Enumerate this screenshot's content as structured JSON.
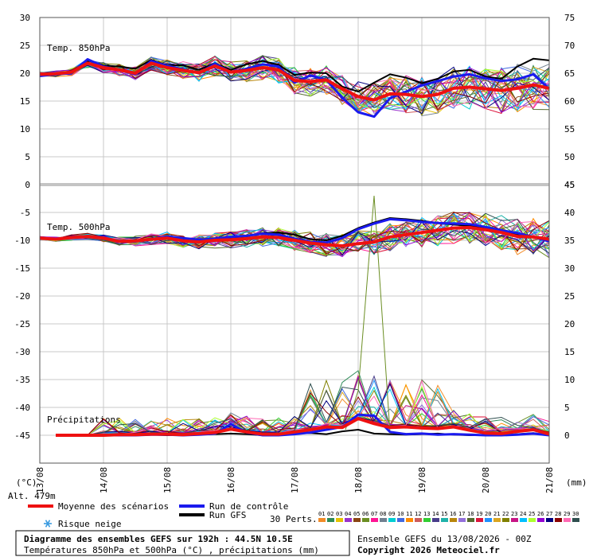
{
  "chart_data": {
    "type": "line",
    "title": "Diagramme des ensembles GEFS sur 192h : 44.5N 10.5E",
    "subtitle": "Températures 850hPa et 500hPa (°C) , précipitations (mm)",
    "run_info": "Ensemble GEFS du 13/08/2026 - 00Z",
    "copyright": "Copyright 2026 Meteociel.fr",
    "altitude_label": "Alt. 479m",
    "left_unit": "(°C)",
    "right_unit": "(mm)",
    "perts_label": "30 Perts.",
    "dates": [
      "13/08",
      "14/08",
      "15/08",
      "16/08",
      "17/08",
      "18/08",
      "19/08",
      "20/08",
      "21/08"
    ],
    "left_ticks": [
      "30",
      "25",
      "20",
      "15",
      "10",
      "5",
      "0",
      "-5",
      "-10",
      "-15",
      "-20",
      "-25",
      "-30",
      "-35",
      "-40",
      "-45"
    ],
    "right_top_ticks": [
      "75",
      "70",
      "65",
      "60",
      "55",
      "50",
      "45"
    ],
    "right_bottom_ticks": [
      "45",
      "40",
      "35",
      "30",
      "25",
      "20",
      "15",
      "10",
      "5",
      "0"
    ],
    "pert_numbers": [
      "01",
      "02",
      "03",
      "04",
      "05",
      "06",
      "07",
      "08",
      "09",
      "10",
      "11",
      "12",
      "13",
      "14",
      "15",
      "16",
      "17",
      "18",
      "19",
      "20",
      "21",
      "22",
      "23",
      "24",
      "25",
      "26",
      "27",
      "28",
      "29",
      "30"
    ],
    "pert_colors": [
      "#f28c28",
      "#2e8b57",
      "#e6c300",
      "#9932cc",
      "#8b4513",
      "#6b8e23",
      "#ff1493",
      "#708090",
      "#00ced1",
      "#4169e1",
      "#ff8c00",
      "#cd5c5c",
      "#32cd32",
      "#483d8b",
      "#20b2aa",
      "#b8860b",
      "#9370db",
      "#556b2f",
      "#dc143c",
      "#1e90ff",
      "#daa520",
      "#808000",
      "#c71585",
      "#00bfff",
      "#adff2f",
      "#9400d3",
      "#000080",
      "#8b0000",
      "#ff69b4",
      "#2f4f4f"
    ],
    "panels": [
      {
        "key": "t850",
        "label": "Temp. 850hPa",
        "ylim": [
          0,
          30
        ]
      },
      {
        "key": "t500",
        "label": "Temp. 500hPa",
        "ylim": [
          -45,
          -5
        ]
      },
      {
        "key": "precip",
        "label": "Précipitations",
        "ylim": [
          0,
          45
        ]
      }
    ],
    "legend": {
      "mean": "Moyenne des scénarios",
      "control": "Run de contrôle",
      "gfs": "Run GFS",
      "snow": "Risque neige"
    },
    "series_colors": {
      "mean": "#ee1111",
      "control": "#1a1aee",
      "gfs": "#000000"
    },
    "x_days": [
      0,
      0.25,
      0.5,
      0.75,
      1,
      1.25,
      1.5,
      1.75,
      2,
      2.25,
      2.5,
      2.75,
      3,
      3.25,
      3.5,
      3.75,
      4,
      4.25,
      4.5,
      4.75,
      5,
      5.25,
      5.5,
      5.75,
      6,
      6.25,
      6.5,
      6.75,
      7,
      7.25,
      7.5,
      7.75,
      8
    ],
    "t850": {
      "mean": [
        19.8,
        19.9,
        20.2,
        21.8,
        21,
        20.6,
        20,
        21.8,
        21,
        20.5,
        20.1,
        21.3,
        20.2,
        20.5,
        21,
        20.6,
        18.7,
        18.5,
        18.8,
        17.2,
        15.8,
        15.2,
        16.3,
        16.2,
        15.8,
        16.2,
        17.3,
        17.5,
        17.2,
        16.9,
        17.3,
        17.9,
        17.3
      ],
      "control": [
        19.5,
        19.8,
        20,
        22.5,
        21.2,
        20.6,
        19.8,
        22.2,
        21.3,
        20.7,
        20,
        21.7,
        20.2,
        20.8,
        21.6,
        21.2,
        18.3,
        19.6,
        18.8,
        15.6,
        13,
        12.2,
        15.5,
        16.7,
        17.8,
        18.6,
        19.4,
        19.8,
        19.1,
        18.6,
        18.9,
        19.8,
        17.2
      ],
      "gfs": [
        19.6,
        20,
        20.3,
        22.3,
        21.4,
        21.2,
        20.8,
        22.4,
        21.4,
        21.4,
        20.6,
        21.8,
        20.6,
        21.6,
        22.2,
        21.5,
        19.7,
        20.1,
        20,
        17.6,
        16.7,
        18.3,
        19.8,
        19.2,
        18.2,
        19,
        20.3,
        20.6,
        19.4,
        19,
        21.2,
        22.6,
        22.3
      ]
    },
    "t500": {
      "mean": [
        -9.6,
        -9.8,
        -9.5,
        -9.3,
        -9.6,
        -10.2,
        -10.1,
        -9.8,
        -9.6,
        -10.1,
        -10.3,
        -10,
        -9.9,
        -9.7,
        -9.4,
        -9.5,
        -10,
        -10.5,
        -10.8,
        -11,
        -10.6,
        -10.3,
        -9.4,
        -9,
        -8.6,
        -8.2,
        -7.8,
        -7.7,
        -8.1,
        -8.6,
        -9.3,
        -9.4,
        -9.8
      ],
      "control": [
        -9.7,
        -9.8,
        -9.4,
        -9.3,
        -9.4,
        -10.3,
        -10.2,
        -9.8,
        -9.3,
        -9.6,
        -9.9,
        -9.7,
        -9.4,
        -9.2,
        -8.8,
        -9,
        -9.7,
        -10.3,
        -10.4,
        -9.6,
        -8,
        -7,
        -6.2,
        -6.4,
        -6.7,
        -6.9,
        -7,
        -7.1,
        -7.6,
        -8.2,
        -8.7,
        -9.4,
        -10.2
      ],
      "gfs": [
        -9.6,
        -9.9,
        -9.6,
        -9.3,
        -9.5,
        -10.2,
        -10.2,
        -9.8,
        -9.5,
        -9.9,
        -10.2,
        -9.8,
        -9.5,
        -9.3,
        -8.7,
        -8.6,
        -9,
        -9.8,
        -10,
        -9.2,
        -7.8,
        -6.8,
        -6,
        -6.2,
        -6.5,
        -6.9,
        -7.2,
        -7.4,
        -7.9,
        -8.5,
        -9,
        -9.4,
        -9.9
      ]
    },
    "precip": {
      "mean": [
        0,
        0,
        0,
        0,
        0,
        0.1,
        0.1,
        0.2,
        0.2,
        0.1,
        0.3,
        0.5,
        1.1,
        0.6,
        0.2,
        0.2,
        0.6,
        1,
        1.5,
        1.4,
        3,
        2.1,
        1.4,
        1.5,
        1.3,
        1.2,
        1.5,
        0.9,
        0.4,
        0.3,
        0.7,
        1,
        0.2
      ],
      "control": [
        0,
        0,
        0,
        0,
        0,
        0,
        0,
        0.1,
        0.1,
        0,
        0.1,
        0.3,
        2,
        0.5,
        0,
        0,
        0.2,
        0.5,
        1,
        1.5,
        3.7,
        3.5,
        0.6,
        0.2,
        0.3,
        0.1,
        0.2,
        0.1,
        0,
        0,
        0.1,
        0.3,
        0
      ],
      "gfs": [
        0,
        0,
        0,
        0,
        0,
        0,
        0,
        0.1,
        0,
        0,
        0.1,
        0.2,
        0.3,
        0.2,
        0,
        0,
        0.3,
        0.4,
        0.2,
        0.7,
        1,
        0.3,
        0.2,
        0.1,
        0.2,
        0.3,
        0.1,
        0,
        0,
        0,
        0.2,
        0.4,
        0
      ]
    },
    "perturbations_note": "30 ensemble members drawn as thin coloured lines"
  }
}
